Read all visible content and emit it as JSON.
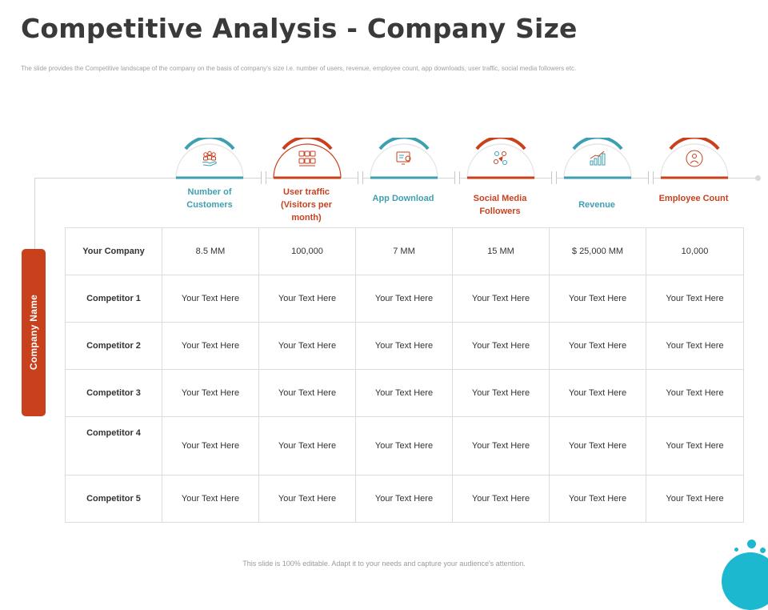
{
  "title": "Competitive Analysis - Company Size",
  "subtitle": "The slide provides the Competitive landscape of the company on the basis of company's size i.e. number of users, revenue, employee count, app downloads, user traffic, social media followers etc.",
  "side_label": "Company Name",
  "colors": {
    "teal": "#3e9fb1",
    "red": "#c9401d",
    "grid": "#dcdcdc",
    "accent_dot": "#1bb8cf"
  },
  "columns": [
    {
      "label": "Number of Customers",
      "color": "teal",
      "icon": "customers-icon"
    },
    {
      "label": "User traffic (Visitors per month)",
      "color": "red",
      "icon": "user-traffic-icon"
    },
    {
      "label": "App Download",
      "color": "teal",
      "icon": "app-download-icon"
    },
    {
      "label": "Social Media Followers",
      "color": "red",
      "icon": "social-media-icon"
    },
    {
      "label": "Revenue",
      "color": "teal",
      "icon": "revenue-chart-icon"
    },
    {
      "label": "Employee Count",
      "color": "red",
      "icon": "employee-icon"
    }
  ],
  "rows": [
    {
      "name": "Your Company",
      "cells": [
        "8.5 MM",
        "100,000",
        "7 MM",
        "15 MM",
        "$ 25,000 MM",
        "10,000"
      ]
    },
    {
      "name": "Competitor 1",
      "cells": [
        "Your Text  Here",
        "Your Text  Here",
        "Your Text  Here",
        "Your Text  Here",
        "Your Text  Here",
        "Your Text  Here"
      ]
    },
    {
      "name": "Competitor 2",
      "cells": [
        "Your Text  Here",
        "Your Text  Here",
        "Your Text  Here",
        "Your Text  Here",
        "Your Text  Here",
        "Your Text  Here"
      ]
    },
    {
      "name": "Competitor 3",
      "cells": [
        "Your Text  Here",
        "Your Text  Here",
        "Your Text  Here",
        "Your Text  Here",
        "Your Text  Here",
        "Your Text  Here"
      ]
    },
    {
      "name": "Competitor 4",
      "cells": [
        "Your Text  Here",
        "Your Text  Here",
        "Your Text  Here",
        "Your Text  Here",
        "Your Text  Here",
        "Your Text  Here"
      ]
    },
    {
      "name": "Competitor 5",
      "cells": [
        "Your Text  Here",
        "Your Text  Here",
        "Your Text  Here",
        "Your Text  Here",
        "Your Text  Here",
        "Your Text  Here"
      ]
    }
  ],
  "footer": "This slide is 100% editable. Adapt it to your needs and capture your audience's attention."
}
